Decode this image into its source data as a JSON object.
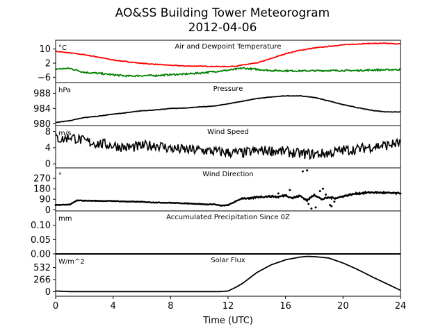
{
  "figure": {
    "title": "AO&SS Building Tower Meteorogram",
    "subtitle": "2012-04-06",
    "xlabel": "Time (UTC)"
  },
  "x_axis": {
    "range": [
      0,
      24
    ],
    "ticks": [
      0,
      4,
      8,
      12,
      16,
      20,
      24
    ],
    "tick_labels": [
      "0",
      "4",
      "8",
      "12",
      "16",
      "20",
      "24"
    ]
  },
  "chart_data": [
    {
      "type": "line",
      "title": "Air and Dewpoint Temperature",
      "unit": "°C",
      "ylim": [
        -9,
        15
      ],
      "yticks": [
        10,
        2,
        -6
      ],
      "ytick_labels": [
        "10",
        "2",
        "−6"
      ],
      "x": [
        0,
        1,
        2,
        3,
        4,
        5,
        6,
        7,
        8,
        9,
        10,
        11,
        12,
        12.5,
        13,
        14,
        15,
        16,
        17,
        18,
        19,
        20,
        21,
        22,
        23,
        24
      ],
      "series": [
        {
          "values": [
            8.7,
            7.8,
            6.8,
            5.4,
            3.8,
            2.8,
            1.9,
            1.3,
            0.8,
            0.4,
            0.3,
            0.1,
            0.1,
            0.3,
            0.9,
            2.1,
            4.6,
            7.4,
            9.3,
            10.6,
            11.5,
            12.4,
            12.9,
            13.2,
            13.2,
            12.9
          ],
          "color": "#ff0000"
        },
        {
          "values": [
            -1.3,
            -1.0,
            -3.2,
            -3.8,
            -4.6,
            -5.3,
            -5.1,
            -5.0,
            -4.5,
            -4.2,
            -3.6,
            -2.8,
            -2.0,
            -1.5,
            -0.8,
            -1.5,
            -2.2,
            -2.3,
            -2.4,
            -2.3,
            -2.2,
            -2.2,
            -2.2,
            -1.9,
            -1.8,
            -1.6
          ],
          "color": "#008000"
        }
      ]
    },
    {
      "type": "line",
      "title": "Pressure",
      "unit": "hPa",
      "ylim": [
        979.5,
        990.8
      ],
      "yticks": [
        988,
        984,
        980
      ],
      "ytick_labels": [
        "988",
        "984",
        "980"
      ],
      "x": [
        0,
        1,
        2,
        3,
        4,
        5,
        6,
        7,
        8,
        9,
        10,
        11,
        12,
        13,
        14,
        15,
        16,
        17,
        18,
        19,
        20,
        21,
        22,
        23,
        24
      ],
      "series": [
        {
          "values": [
            980.3,
            980.8,
            981.6,
            982.0,
            982.5,
            982.9,
            983.4,
            983.6,
            984.0,
            984.1,
            984.4,
            984.6,
            985.2,
            985.9,
            986.6,
            987.0,
            987.3,
            987.3,
            986.9,
            986.0,
            985.0,
            984.2,
            983.5,
            983.1,
            983.1
          ],
          "color": "#000000"
        }
      ]
    },
    {
      "type": "line",
      "title": "Wind Speed",
      "unit": "m/s",
      "ylim": [
        -1,
        9.5
      ],
      "yticks": [
        8,
        4,
        0
      ],
      "ytick_labels": [
        "8",
        "4",
        "0"
      ],
      "x": [
        0,
        0.5,
        1,
        1.5,
        2,
        3,
        4,
        5,
        6,
        7,
        8,
        9,
        10,
        11,
        12,
        13,
        14,
        15,
        16,
        17,
        18,
        19,
        20,
        21,
        22,
        23,
        24
      ],
      "series": [
        {
          "values": [
            6.5,
            6.0,
            6.8,
            6.2,
            5.6,
            5.0,
            4.6,
            4.0,
            4.4,
            4.7,
            3.8,
            3.5,
            3.4,
            3.1,
            2.8,
            2.7,
            3.2,
            3.3,
            3.0,
            2.5,
            2.4,
            2.6,
            3.4,
            3.6,
            4.3,
            4.6,
            5.2
          ],
          "color": "#000000"
        }
      ]
    },
    {
      "type": "scatter",
      "title": "Wind Direction",
      "unit": "°",
      "ylim": [
        -10,
        360
      ],
      "yticks": [
        270,
        180,
        90,
        0
      ],
      "ytick_labels": [
        "270",
        "180",
        "90",
        "0"
      ],
      "x": [
        0,
        1,
        1.5,
        2,
        3,
        4,
        5,
        6,
        7,
        8,
        9,
        10,
        10.5,
        11,
        11.5,
        12,
        12.5,
        13,
        13.5,
        14,
        15,
        15.5,
        16,
        16.5,
        17,
        17.5,
        18,
        18.5,
        19,
        19.5,
        20,
        20.5,
        21,
        22,
        23,
        24
      ],
      "series": [
        {
          "values": [
            40,
            45,
            80,
            78,
            76,
            75,
            70,
            68,
            62,
            60,
            55,
            50,
            45,
            48,
            35,
            40,
            70,
            100,
            95,
            110,
            115,
            110,
            125,
            100,
            120,
            80,
            130,
            90,
            105,
            100,
            115,
            130,
            140,
            150,
            145,
            140
          ],
          "color": "#000000"
        }
      ],
      "outliers": {
        "x": [
          15.5,
          16.3,
          17.4,
          17.6,
          18.1,
          18.4,
          18.8,
          19.1,
          19.4,
          19.8,
          17.8,
          18.6,
          19.2,
          16.6
        ],
        "values": [
          140,
          170,
          90,
          50,
          20,
          160,
          130,
          40,
          70,
          110,
          10,
          180,
          30,
          110
        ]
      },
      "tall_points": {
        "x": [
          17.2,
          17.5
        ],
        "values": [
          330,
          338
        ]
      }
    },
    {
      "type": "area",
      "title": "Accumulated Precipitation Since 0Z",
      "unit": "mm",
      "ylim": [
        0,
        0.15
      ],
      "yticks": [
        0.1,
        0.05,
        0.0
      ],
      "ytick_labels": [
        "0.10",
        "0.05",
        "0.00"
      ],
      "x": [
        0,
        24
      ],
      "series": [
        {
          "values": [
            0,
            0
          ],
          "color": "#000000"
        }
      ]
    },
    {
      "type": "line",
      "title": "Solar Flux",
      "unit": "W/m^2",
      "ylim": [
        -100,
        830
      ],
      "yticks": [
        532,
        266,
        0
      ],
      "ytick_labels": [
        "532",
        "266",
        "0"
      ],
      "x": [
        0,
        1,
        2,
        4,
        6,
        8,
        10,
        11,
        11.5,
        12,
        12.5,
        13,
        14,
        15,
        16,
        17,
        17.5,
        18,
        19,
        20,
        21,
        22,
        23,
        24
      ],
      "series": [
        {
          "values": [
            15,
            2,
            2,
            2,
            2,
            2,
            2,
            2,
            3,
            15,
            90,
            180,
            420,
            590,
            700,
            760,
            775,
            770,
            740,
            630,
            490,
            330,
            180,
            30
          ],
          "color": "#000000"
        }
      ]
    }
  ]
}
